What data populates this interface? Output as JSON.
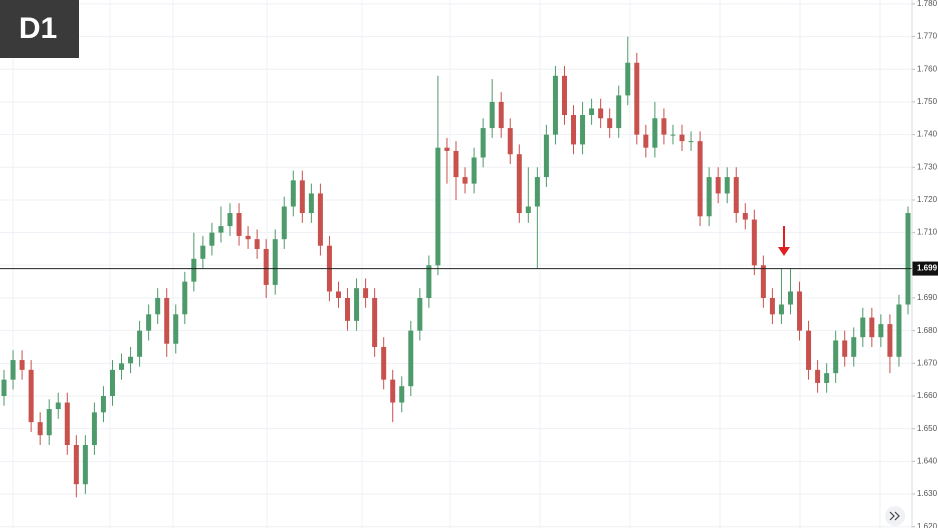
{
  "chart_data": {
    "type": "candlestick",
    "title": "D1",
    "up_color": "#4d9a6a",
    "down_color": "#c8504d",
    "grid": true,
    "ylim": [
      1.6196,
      1.7812
    ],
    "yticks": [
      {
        "value": 1.62,
        "label": "1.620"
      },
      {
        "value": 1.63,
        "label": "1.630"
      },
      {
        "value": 1.64,
        "label": "1.640"
      },
      {
        "value": 1.65,
        "label": "1.650"
      },
      {
        "value": 1.66,
        "label": "1.660"
      },
      {
        "value": 1.67,
        "label": "1.670"
      },
      {
        "value": 1.68,
        "label": "1.680"
      },
      {
        "value": 1.69,
        "label": "1.690"
      },
      {
        "value": 1.7,
        "label": "1.700"
      },
      {
        "value": 1.71,
        "label": "1.710"
      },
      {
        "value": 1.72,
        "label": "1.720"
      },
      {
        "value": 1.73,
        "label": "1.730"
      },
      {
        "value": 1.74,
        "label": "1.740"
      },
      {
        "value": 1.75,
        "label": "1.750"
      },
      {
        "value": 1.76,
        "label": "1.760"
      },
      {
        "value": 1.77,
        "label": "1.770"
      },
      {
        "value": 1.78,
        "label": "1.780"
      }
    ],
    "hline": {
      "value": 1.699,
      "label": "1.699"
    },
    "open": [
      1.66,
      1.665,
      1.671,
      1.668,
      1.652,
      1.648,
      1.656,
      1.658,
      1.645,
      1.633,
      1.645,
      1.655,
      1.66,
      1.668,
      1.67,
      1.672,
      1.68,
      1.685,
      1.69,
      1.676,
      1.685,
      1.695,
      1.702,
      1.706,
      1.71,
      1.712,
      1.716,
      1.709,
      1.708,
      1.705,
      1.694,
      1.708,
      1.718,
      1.726,
      1.716,
      1.722,
      1.706,
      1.692,
      1.69,
      1.683,
      1.693,
      1.69,
      1.675,
      1.665,
      1.658,
      1.663,
      1.68,
      1.69,
      1.7,
      1.736,
      1.735,
      1.727,
      1.725,
      1.733,
      1.742,
      1.75,
      1.742,
      1.734,
      1.716,
      1.718,
      1.727,
      1.74,
      1.758,
      1.746,
      1.737,
      1.746,
      1.748,
      1.745,
      1.742,
      1.752,
      1.762,
      1.74,
      1.736,
      1.745,
      1.74,
      1.74,
      1.738,
      1.738,
      1.715,
      1.727,
      1.722,
      1.727,
      1.716,
      1.714,
      1.7,
      1.69,
      1.685,
      1.688,
      1.692,
      1.68,
      1.668,
      1.664,
      1.667,
      1.677,
      1.672,
      1.678,
      1.684,
      1.678,
      1.682,
      1.672,
      1.688
    ],
    "high": [
      1.668,
      1.674,
      1.674,
      1.671,
      1.655,
      1.659,
      1.661,
      1.661,
      1.648,
      1.648,
      1.658,
      1.663,
      1.671,
      1.673,
      1.675,
      1.683,
      1.688,
      1.693,
      1.693,
      1.688,
      1.698,
      1.71,
      1.709,
      1.713,
      1.718,
      1.719,
      1.719,
      1.712,
      1.711,
      1.708,
      1.711,
      1.721,
      1.729,
      1.729,
      1.725,
      1.725,
      1.709,
      1.695,
      1.693,
      1.696,
      1.696,
      1.693,
      1.678,
      1.668,
      1.666,
      1.683,
      1.693,
      1.703,
      1.758,
      1.739,
      1.738,
      1.73,
      1.736,
      1.745,
      1.757,
      1.753,
      1.745,
      1.737,
      1.73,
      1.73,
      1.743,
      1.761,
      1.761,
      1.749,
      1.75,
      1.751,
      1.751,
      1.748,
      1.755,
      1.77,
      1.765,
      1.743,
      1.75,
      1.748,
      1.743,
      1.743,
      1.741,
      1.741,
      1.73,
      1.73,
      1.73,
      1.73,
      1.719,
      1.717,
      1.703,
      1.693,
      1.699,
      1.699,
      1.695,
      1.683,
      1.671,
      1.67,
      1.68,
      1.68,
      1.681,
      1.687,
      1.687,
      1.685,
      1.685,
      1.691,
      1.718
    ],
    "low": [
      1.657,
      1.662,
      1.665,
      1.649,
      1.645,
      1.645,
      1.653,
      1.642,
      1.629,
      1.63,
      1.642,
      1.652,
      1.657,
      1.665,
      1.667,
      1.669,
      1.677,
      1.682,
      1.672,
      1.673,
      1.682,
      1.692,
      1.699,
      1.703,
      1.707,
      1.709,
      1.706,
      1.705,
      1.702,
      1.69,
      1.691,
      1.705,
      1.715,
      1.713,
      1.713,
      1.703,
      1.689,
      1.687,
      1.68,
      1.68,
      1.687,
      1.672,
      1.662,
      1.652,
      1.655,
      1.66,
      1.677,
      1.687,
      1.697,
      1.725,
      1.72,
      1.722,
      1.722,
      1.73,
      1.739,
      1.739,
      1.731,
      1.713,
      1.713,
      1.699,
      1.724,
      1.737,
      1.743,
      1.734,
      1.734,
      1.743,
      1.742,
      1.739,
      1.739,
      1.749,
      1.737,
      1.733,
      1.733,
      1.737,
      1.737,
      1.735,
      1.735,
      1.712,
      1.712,
      1.719,
      1.719,
      1.713,
      1.711,
      1.697,
      1.687,
      1.682,
      1.682,
      1.685,
      1.677,
      1.665,
      1.661,
      1.661,
      1.664,
      1.669,
      1.669,
      1.675,
      1.675,
      1.675,
      1.667,
      1.669,
      1.685
    ],
    "close": [
      1.665,
      1.671,
      1.668,
      1.652,
      1.648,
      1.656,
      1.658,
      1.645,
      1.633,
      1.645,
      1.655,
      1.66,
      1.668,
      1.67,
      1.672,
      1.68,
      1.685,
      1.69,
      1.676,
      1.685,
      1.695,
      1.702,
      1.706,
      1.71,
      1.712,
      1.716,
      1.709,
      1.708,
      1.705,
      1.694,
      1.708,
      1.718,
      1.726,
      1.716,
      1.722,
      1.706,
      1.692,
      1.69,
      1.683,
      1.693,
      1.69,
      1.675,
      1.665,
      1.658,
      1.663,
      1.68,
      1.69,
      1.7,
      1.736,
      1.735,
      1.727,
      1.725,
      1.733,
      1.742,
      1.75,
      1.742,
      1.734,
      1.716,
      1.718,
      1.727,
      1.74,
      1.758,
      1.746,
      1.737,
      1.746,
      1.748,
      1.745,
      1.742,
      1.752,
      1.762,
      1.74,
      1.736,
      1.745,
      1.74,
      1.74,
      1.738,
      1.738,
      1.715,
      1.727,
      1.722,
      1.727,
      1.716,
      1.714,
      1.7,
      1.69,
      1.685,
      1.688,
      1.692,
      1.68,
      1.668,
      1.664,
      1.667,
      1.677,
      1.672,
      1.678,
      1.684,
      1.678,
      1.682,
      1.672,
      1.688,
      1.716
    ]
  }
}
